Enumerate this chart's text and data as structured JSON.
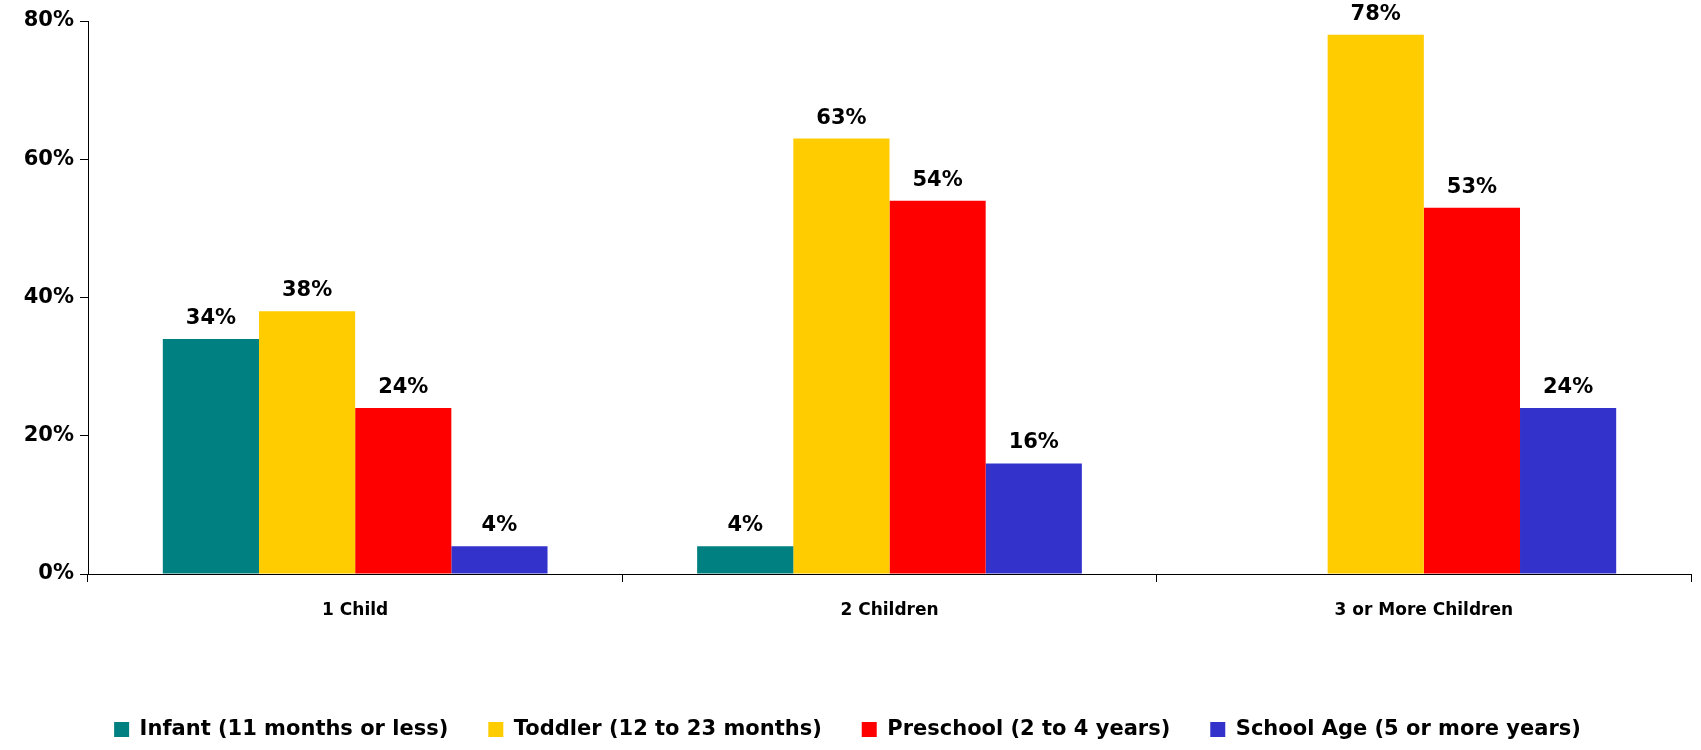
{
  "chart_data": {
    "type": "bar",
    "categories": [
      "1 Child",
      "2 Children",
      "3 or More Children"
    ],
    "series": [
      {
        "name": "Infant (11 months or less)",
        "color": "#008080",
        "values": [
          34,
          4,
          null
        ],
        "value_labels": [
          "34%",
          "4%",
          null
        ]
      },
      {
        "name": "Toddler (12 to 23 months)",
        "color": "#ffcc00",
        "values": [
          38,
          63,
          78
        ],
        "value_labels": [
          "38%",
          "63%",
          "78%"
        ]
      },
      {
        "name": "Preschool (2 to 4 years)",
        "color": "#ff0000",
        "values": [
          24,
          54,
          53
        ],
        "value_labels": [
          "24%",
          "54%",
          "53%"
        ]
      },
      {
        "name": "School Age (5 or more years)",
        "color": "#3333cc",
        "values": [
          4,
          16,
          24
        ],
        "value_labels": [
          "4%",
          "16%",
          "24%"
        ]
      }
    ],
    "ylim": [
      0,
      80
    ],
    "yticks": [
      {
        "value": 0,
        "label": "0%"
      },
      {
        "value": 20,
        "label": "20%"
      },
      {
        "value": 40,
        "label": "40%"
      },
      {
        "value": 60,
        "label": "60%"
      },
      {
        "value": 80,
        "label": "80%"
      }
    ],
    "legend": "bottom"
  }
}
